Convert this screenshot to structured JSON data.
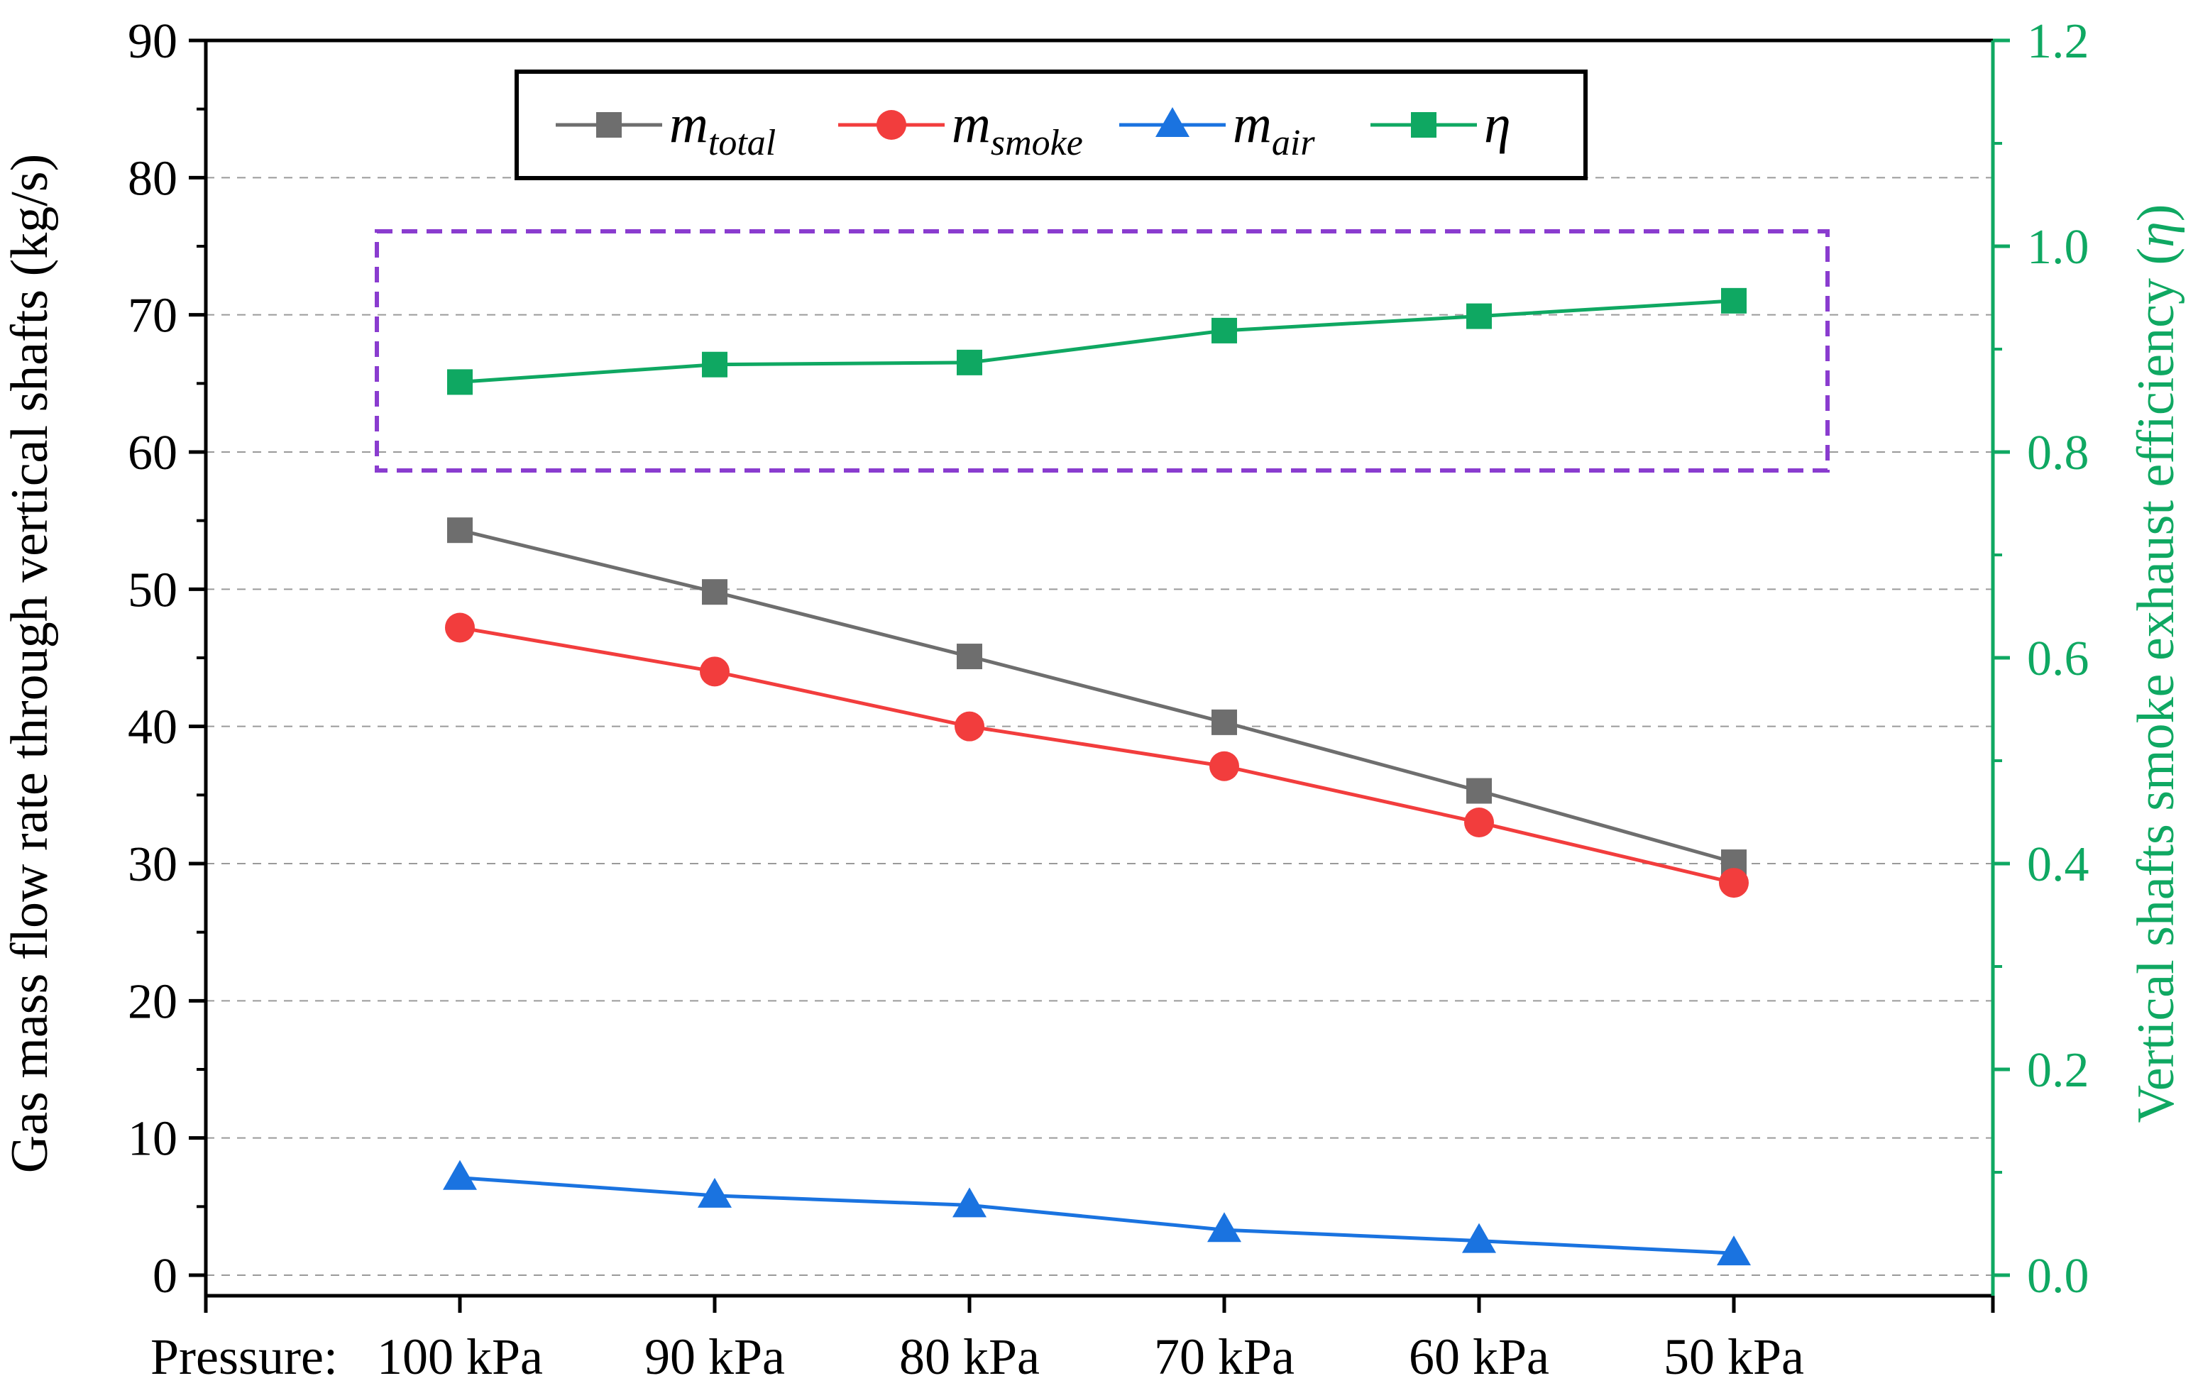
{
  "chart_data": {
    "type": "line",
    "title": "",
    "categories_prefix": "Pressure:",
    "categories": [
      "100 kPa",
      "90 kPa",
      "80 kPa",
      "70 kPa",
      "60 kPa",
      "50 kPa"
    ],
    "x": [
      100,
      90,
      80,
      70,
      60,
      50
    ],
    "ylabel_left": "Gas mass flow rate through vertical shafts (kg/s)",
    "ylabel_right_text": "Vertical shafts smoke exhaust efficiency (",
    "ylabel_right_symbol": "η",
    "ylabel_right_close": ")",
    "ylim_left": [
      -1.5,
      90
    ],
    "yticks_left": [
      "0",
      "10",
      "20",
      "30",
      "40",
      "50",
      "60",
      "70",
      "80",
      "90"
    ],
    "ylim_right": [
      -0.02,
      1.2
    ],
    "yticks_right": [
      "0.0",
      "0.2",
      "0.4",
      "0.6",
      "0.8",
      "1.0",
      "1.2"
    ],
    "grid": true,
    "legend_position": "top",
    "highlight_box": "around efficiency series",
    "series": [
      {
        "id": "total",
        "name": "m",
        "subscript": "total",
        "axis": "left",
        "marker": "square",
        "color": "#6e6e6e",
        "values": [
          54.3,
          49.8,
          45.1,
          40.3,
          35.3,
          30.1
        ]
      },
      {
        "id": "smoke",
        "name": "m",
        "subscript": "smoke",
        "axis": "left",
        "marker": "circle",
        "color": "#f23d3d",
        "values": [
          47.2,
          44.0,
          40.0,
          37.1,
          33.0,
          28.6
        ]
      },
      {
        "id": "air",
        "name": "m",
        "subscript": "air",
        "axis": "left",
        "marker": "triangle",
        "color": "#1a73e0",
        "values": [
          7.1,
          5.8,
          5.1,
          3.3,
          2.5,
          1.6
        ]
      },
      {
        "id": "eta",
        "name": "η",
        "subscript": "",
        "axis": "right",
        "marker": "square",
        "color": "#0fa862",
        "values": [
          0.868,
          0.885,
          0.887,
          0.918,
          0.932,
          0.947
        ]
      }
    ],
    "colors": {
      "axis": "#000000",
      "grid": "#9a9a9a",
      "right_axis": "#0fa862",
      "box": "#8a3ccf"
    }
  }
}
